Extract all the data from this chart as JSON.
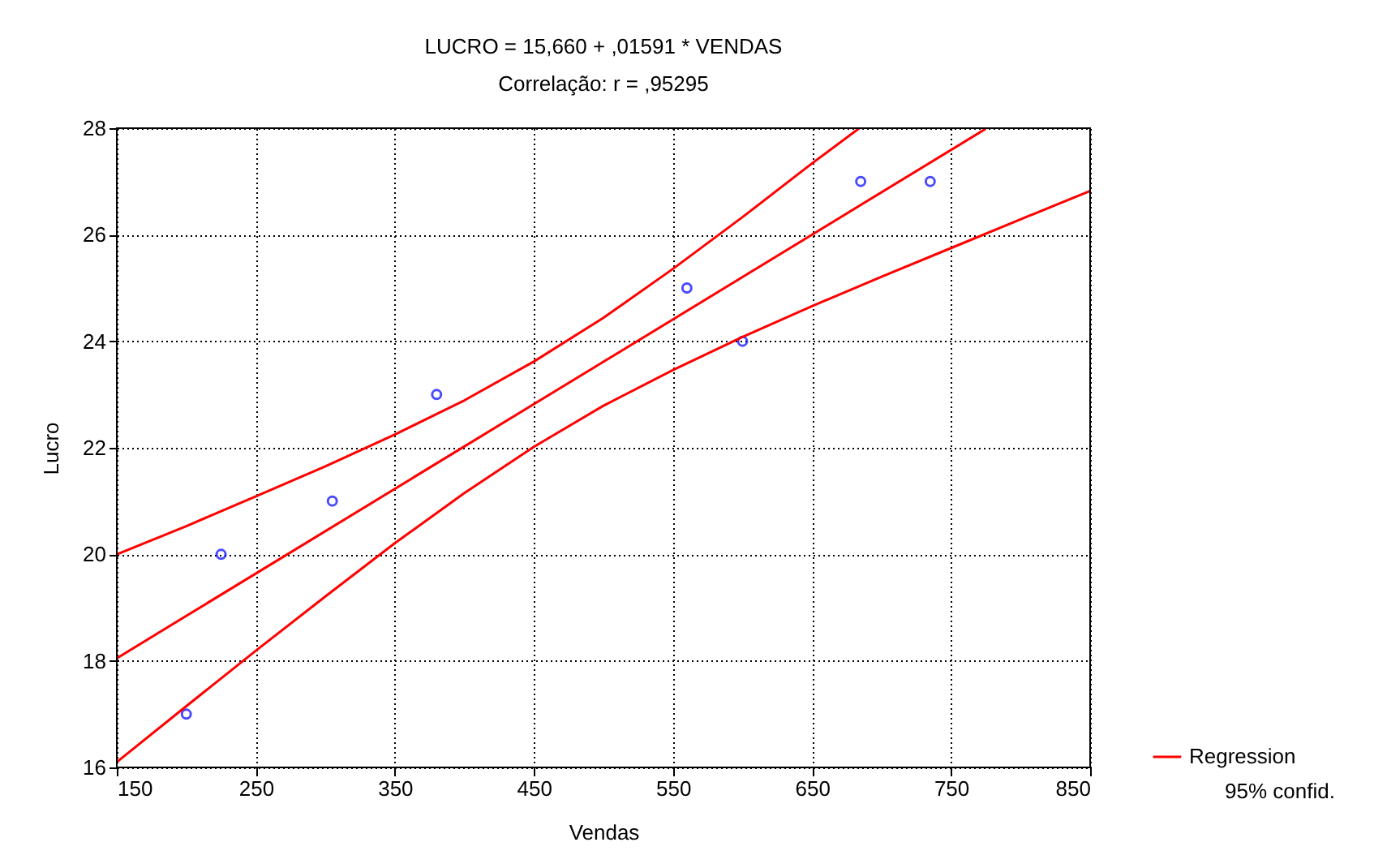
{
  "chart_data": {
    "type": "scatter",
    "title": "LUCRO = 15,660 + ,01591 * VENDAS",
    "subtitle": "Correlação: r = ,95295",
    "xlabel": "Vendas",
    "ylabel": "Lucro",
    "xlim": [
      150,
      850
    ],
    "xticks": [
      150,
      250,
      350,
      450,
      550,
      650,
      750,
      850
    ],
    "ylim": [
      16,
      28
    ],
    "yticks": [
      16,
      18,
      20,
      22,
      24,
      26,
      28
    ],
    "grid": true,
    "legend": "bottom right",
    "marker": "circle",
    "annotations": [
      "95% confid."
    ],
    "series": [
      {
        "color": "#0000ff",
        "x": [
          200,
          225,
          305,
          380,
          560,
          600,
          685,
          735
        ],
        "values": [
          17,
          20,
          21,
          23,
          25,
          24,
          27,
          27
        ]
      },
      {
        "type": "line",
        "name": "Regression",
        "color": "#ff0000",
        "marker": "none",
        "x": [
          150,
          775
        ],
        "values": [
          18.05,
          27.99
        ]
      },
      {
        "type": "line",
        "color": "#ff0000",
        "marker": "none",
        "x": [
          150,
          200,
          250,
          300,
          350,
          400,
          450,
          500,
          550,
          600,
          650,
          684
        ],
        "values": [
          20.0,
          20.53,
          21.09,
          21.65,
          22.25,
          22.89,
          23.62,
          24.44,
          25.36,
          26.33,
          27.34,
          28.0
        ]
      },
      {
        "type": "line",
        "color": "#ff0000",
        "marker": "none",
        "x": [
          150,
          200,
          250,
          300,
          350,
          400,
          450,
          500,
          550,
          600,
          650,
          700,
          750,
          800,
          850
        ],
        "values": [
          16.1,
          17.15,
          18.19,
          19.21,
          20.21,
          21.15,
          22.02,
          22.79,
          23.46,
          24.08,
          24.66,
          25.21,
          25.75,
          26.29,
          26.82
        ]
      }
    ]
  }
}
